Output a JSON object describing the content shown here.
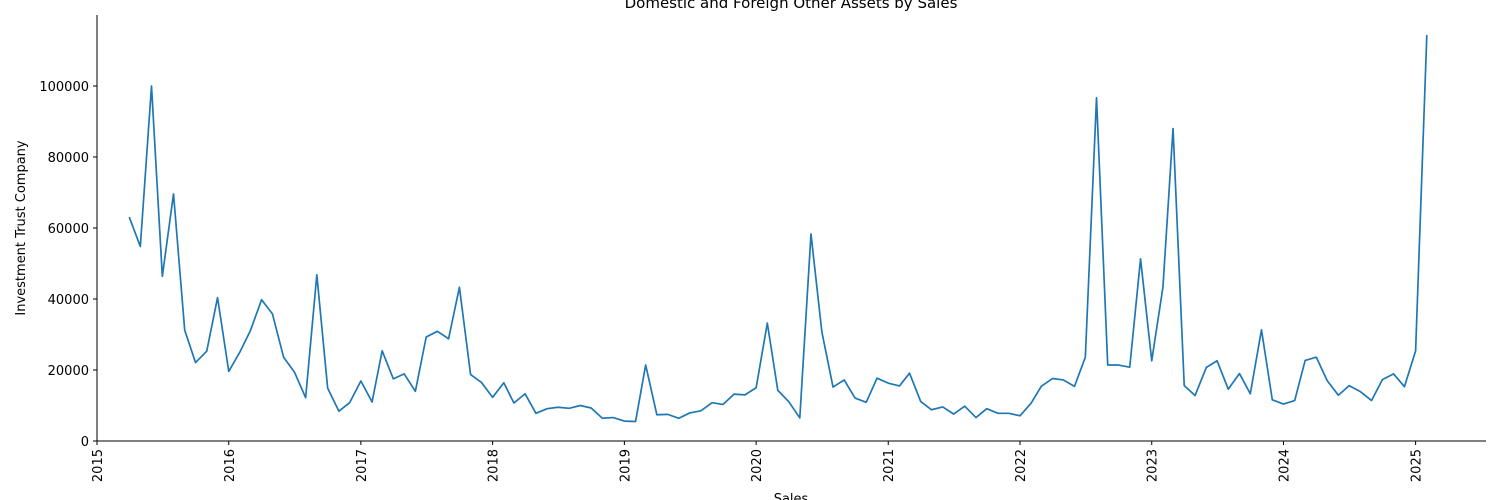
{
  "chart_data": {
    "type": "line",
    "title": "Domestic and Foreign Other Assets by Sales",
    "xlabel": "Sales",
    "ylabel": "Investment Trust Company",
    "x_tick_labels": [
      "2015",
      "2016",
      "2017",
      "2018",
      "2019",
      "2020",
      "2021",
      "2022",
      "2023",
      "2024",
      "2025"
    ],
    "y_tick_values": [
      0,
      20000,
      40000,
      60000,
      80000,
      100000
    ],
    "y_tick_labels": [
      "0",
      "20000",
      "40000",
      "60000",
      "80000",
      "100000"
    ],
    "xlim": [
      "2015-01-01",
      "2025-07-15"
    ],
    "ylim": [
      0,
      120000
    ],
    "grid": false,
    "line_color": "#1f77b4",
    "series": [
      {
        "x": [
          "2015-04-01",
          "2015-05-01",
          "2015-06-01",
          "2015-07-01",
          "2015-08-01",
          "2015-09-01",
          "2015-10-01",
          "2015-11-01",
          "2015-12-01",
          "2016-01-01",
          "2016-02-01",
          "2016-03-01",
          "2016-04-01",
          "2016-05-01",
          "2016-06-01",
          "2016-07-01",
          "2016-08-01",
          "2016-09-01",
          "2016-10-01",
          "2016-11-01",
          "2016-12-01",
          "2017-01-01",
          "2017-02-01",
          "2017-03-01",
          "2017-04-01",
          "2017-05-01",
          "2017-06-01",
          "2017-07-01",
          "2017-08-01",
          "2017-09-01",
          "2017-10-01",
          "2017-11-01",
          "2017-12-01",
          "2018-01-01",
          "2018-02-01",
          "2018-03-01",
          "2018-04-01",
          "2018-05-01",
          "2018-06-01",
          "2018-07-01",
          "2018-08-01",
          "2018-09-01",
          "2018-10-01",
          "2018-11-01",
          "2018-12-01",
          "2019-01-01",
          "2019-02-01",
          "2019-03-01",
          "2019-04-01",
          "2019-05-01",
          "2019-06-01",
          "2019-07-01",
          "2019-08-01",
          "2019-09-01",
          "2019-10-01",
          "2019-11-01",
          "2019-12-01",
          "2020-01-01",
          "2020-02-01",
          "2020-03-01",
          "2020-04-01",
          "2020-05-01",
          "2020-06-01",
          "2020-07-01",
          "2020-08-01",
          "2020-09-01",
          "2020-10-01",
          "2020-11-01",
          "2020-12-01",
          "2021-01-01",
          "2021-02-01",
          "2021-03-01",
          "2021-04-01",
          "2021-05-01",
          "2021-06-01",
          "2021-07-01",
          "2021-08-01",
          "2021-09-01",
          "2021-10-01",
          "2021-11-01",
          "2021-12-01",
          "2022-01-01",
          "2022-02-01",
          "2022-03-01",
          "2022-04-01",
          "2022-05-01",
          "2022-06-01",
          "2022-07-01",
          "2022-08-01",
          "2022-09-01",
          "2022-10-01",
          "2022-11-01",
          "2022-12-01",
          "2023-01-01",
          "2023-02-01",
          "2023-03-01",
          "2023-04-01",
          "2023-05-01",
          "2023-06-01",
          "2023-07-01",
          "2023-08-01",
          "2023-09-01",
          "2023-10-01",
          "2023-11-01",
          "2023-12-01",
          "2024-01-01",
          "2024-02-01",
          "2024-03-01",
          "2024-04-01",
          "2024-05-01",
          "2024-06-01",
          "2024-07-01",
          "2024-08-01",
          "2024-09-01",
          "2024-10-01",
          "2024-11-01",
          "2024-12-01",
          "2025-01-01",
          "2025-02-01"
        ],
        "values": [
          62900,
          54800,
          100000,
          46400,
          69600,
          31200,
          22100,
          25300,
          40400,
          19600,
          25100,
          31100,
          39800,
          35800,
          23600,
          19400,
          12200,
          46800,
          14900,
          8400,
          10800,
          16900,
          11000,
          25400,
          17500,
          18900,
          14000,
          29300,
          30900,
          28800,
          43300,
          18700,
          16500,
          12300,
          16400,
          10700,
          13300,
          7800,
          9100,
          9500,
          9200,
          10000,
          9300,
          6400,
          6600,
          5600,
          5500,
          21400,
          7400,
          7500,
          6400,
          7900,
          8500,
          10800,
          10300,
          13200,
          13000,
          15000,
          33200,
          14300,
          11000,
          6500,
          58300,
          30800,
          15200,
          17200,
          12100,
          10900,
          17700,
          16300,
          15500,
          19100,
          11100,
          8800,
          9600,
          7600,
          9800,
          6600,
          9100,
          7800,
          7800,
          7100,
          10700,
          15400,
          17600,
          17200,
          15400,
          23600,
          96700,
          21400,
          21400,
          20800,
          51300,
          22600,
          43300,
          88000,
          15600,
          12800,
          20700,
          22600,
          14600,
          19000,
          13300,
          31300,
          11600,
          10400,
          11400,
          22700,
          23600,
          17000,
          12900,
          15600,
          13900,
          11400,
          17300,
          18900,
          15300,
          25400,
          114200
        ]
      }
    ]
  }
}
